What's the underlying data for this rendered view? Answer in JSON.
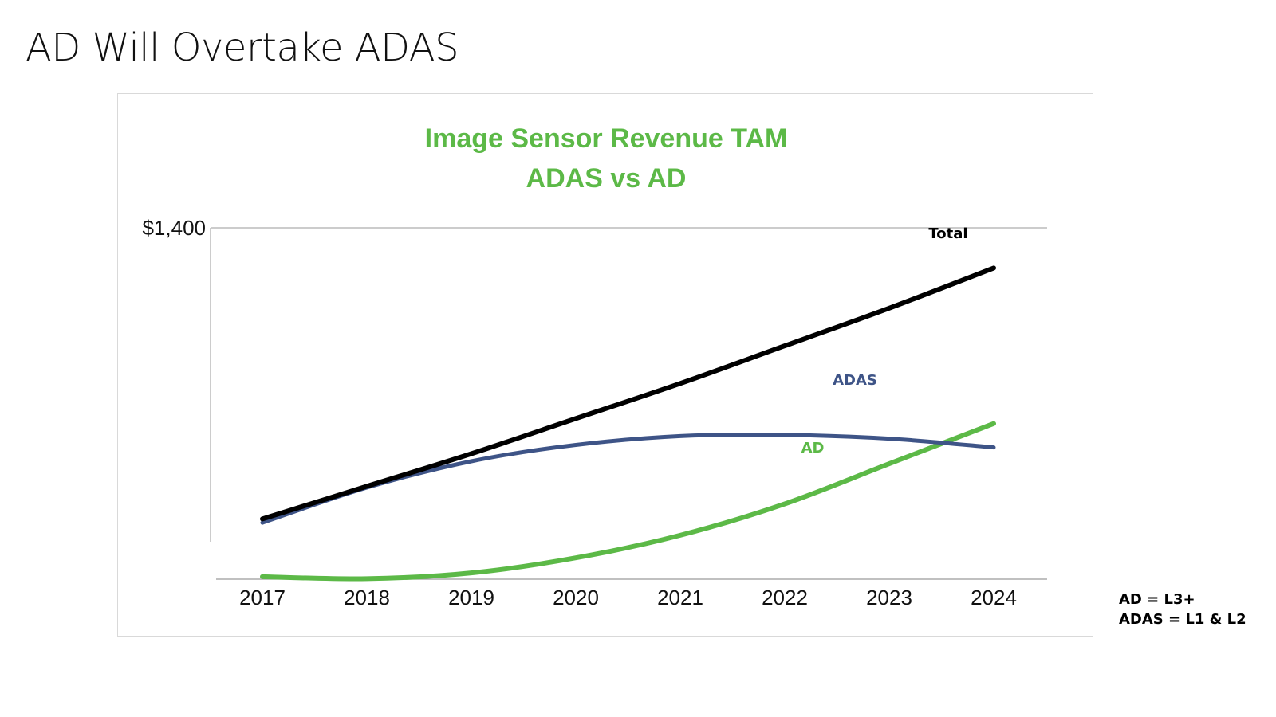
{
  "slide": {
    "title": "AD Will Overtake ADAS"
  },
  "footnotes": [
    "AD = L3+",
    "ADAS = L1 & L2"
  ],
  "colors": {
    "ad": "#5cb947",
    "adas": "#3e5487",
    "total": "#000000",
    "title": "#5cb947"
  },
  "chart_data": {
    "type": "line",
    "title": "Image Sensor Revenue TAM",
    "subtitle": "ADAS vs AD",
    "xlabel": "",
    "ylabel": "",
    "categories": [
      "2017",
      "2018",
      "2019",
      "2020",
      "2021",
      "2022",
      "2023",
      "2024"
    ],
    "y_tick_labels": [
      "$1,400"
    ],
    "ylim": [
      0,
      1400
    ],
    "grid": false,
    "series": [
      {
        "name": "Total",
        "values": [
          240,
          370,
          500,
          640,
          780,
          930,
          1080,
          1240
        ]
      },
      {
        "name": "ADAS",
        "values": [
          225,
          365,
          470,
          535,
          570,
          575,
          560,
          525
        ]
      },
      {
        "name": "AD",
        "values": [
          10,
          2,
          25,
          85,
          175,
          300,
          460,
          620
        ]
      }
    ]
  }
}
